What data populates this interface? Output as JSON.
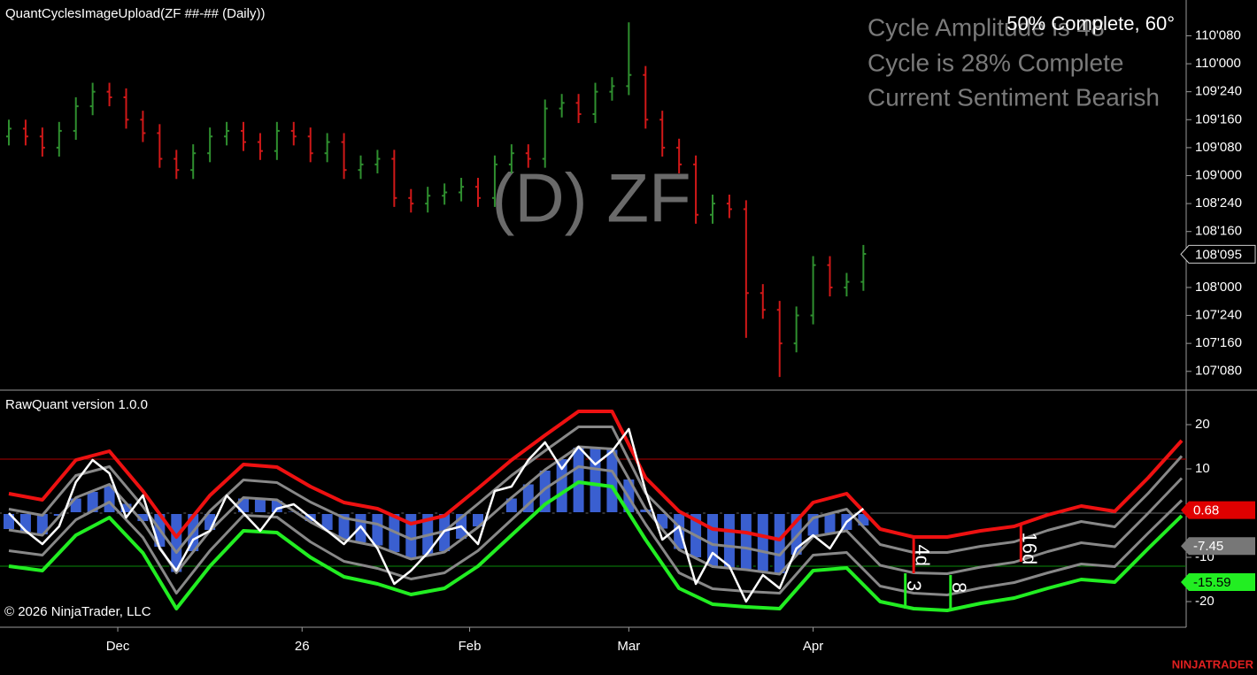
{
  "header": {
    "title": "QuantCyclesImageUpload(ZF ##-## (Daily))",
    "watermark": "(D) ZF",
    "info": [
      "Cycle Amplitude is 48",
      "Cycle is 28% Complete",
      "Current Sentiment Bearish"
    ],
    "status": "50% Complete, 60°"
  },
  "footer": {
    "copyright": "© 2026 NinjaTrader, LLC",
    "brand": "NINJATRADER"
  },
  "chart_data": [
    {
      "type": "ohlc",
      "x": [
        0,
        2,
        4,
        6,
        8,
        10,
        12,
        14,
        16,
        18,
        20,
        22,
        24,
        26,
        28,
        30,
        32,
        34,
        36,
        38,
        40,
        42,
        44,
        46,
        48,
        50,
        52,
        54,
        56,
        58,
        60,
        62,
        64,
        66,
        68,
        70,
        72,
        74,
        76,
        78,
        80,
        82,
        84,
        86,
        88,
        90,
        92,
        94,
        96,
        98,
        100,
        102
      ],
      "open": [
        109.35,
        109.42,
        109.35,
        109.25,
        109.4,
        109.62,
        109.75,
        109.7,
        109.5,
        109.38,
        109.15,
        109.05,
        109.2,
        109.35,
        109.4,
        109.3,
        109.22,
        109.4,
        109.35,
        109.2,
        109.3,
        109.05,
        109.1,
        109.15,
        108.8,
        108.75,
        108.82,
        108.85,
        108.9,
        108.8,
        109.1,
        109.2,
        109.15,
        109.6,
        109.65,
        109.55,
        109.75,
        109.8,
        109.9,
        109.5,
        109.25,
        109.1,
        108.65,
        108.75,
        108.7,
        107.95,
        107.8,
        107.5,
        107.75,
        108.2,
        108.0,
        108.05
      ],
      "high": [
        109.5,
        109.5,
        109.43,
        109.48,
        109.7,
        109.83,
        109.83,
        109.78,
        109.58,
        109.46,
        109.23,
        109.28,
        109.43,
        109.48,
        109.48,
        109.38,
        109.48,
        109.48,
        109.43,
        109.38,
        109.38,
        109.18,
        109.23,
        109.23,
        108.88,
        108.9,
        108.93,
        108.98,
        108.98,
        109.18,
        109.28,
        109.28,
        109.68,
        109.73,
        109.73,
        109.83,
        109.88,
        110.37,
        109.98,
        109.58,
        109.33,
        109.18,
        108.83,
        108.83,
        108.78,
        108.03,
        107.88,
        107.83,
        108.28,
        108.28,
        108.13,
        108.38
      ],
      "low": [
        109.27,
        109.27,
        109.17,
        109.17,
        109.32,
        109.54,
        109.62,
        109.42,
        109.3,
        109.07,
        108.97,
        108.97,
        109.12,
        109.27,
        109.22,
        109.14,
        109.14,
        109.27,
        109.12,
        109.12,
        108.97,
        108.97,
        109.02,
        108.72,
        108.67,
        108.67,
        108.74,
        108.77,
        108.72,
        108.72,
        109.02,
        109.07,
        109.07,
        109.52,
        109.47,
        109.47,
        109.67,
        109.72,
        109.42,
        109.17,
        109.02,
        108.57,
        108.57,
        108.62,
        107.55,
        107.72,
        107.2,
        107.42,
        107.67,
        107.92,
        107.92,
        107.97
      ],
      "close": [
        109.42,
        109.35,
        109.25,
        109.4,
        109.62,
        109.75,
        109.7,
        109.5,
        109.38,
        109.15,
        109.05,
        109.2,
        109.35,
        109.4,
        109.3,
        109.22,
        109.4,
        109.35,
        109.2,
        109.3,
        109.05,
        109.1,
        109.15,
        108.8,
        108.75,
        108.82,
        108.85,
        108.9,
        108.8,
        109.1,
        109.2,
        109.15,
        109.6,
        109.65,
        109.55,
        109.75,
        109.8,
        109.9,
        109.5,
        109.25,
        109.1,
        108.65,
        108.75,
        108.7,
        107.95,
        107.8,
        107.5,
        107.75,
        108.2,
        108.0,
        108.05,
        108.3
      ],
      "up_color": "#2f8f2f",
      "down_color": "#d01818",
      "xlim": [
        0,
        140
      ],
      "ylim": [
        107.09,
        110.57
      ],
      "yticks": [
        {
          "value": 110.25,
          "label": "110'080"
        },
        {
          "value": 110,
          "label": "110'000"
        },
        {
          "value": 109.75,
          "label": "109'240"
        },
        {
          "value": 109.5,
          "label": "109'160"
        },
        {
          "value": 109.25,
          "label": "109'080"
        },
        {
          "value": 109,
          "label": "109'000"
        },
        {
          "value": 108.75,
          "label": "108'240"
        },
        {
          "value": 108.5,
          "label": "108'160"
        },
        {
          "value": 108,
          "label": "108'000"
        },
        {
          "value": 107.75,
          "label": "107'240"
        },
        {
          "value": 107.5,
          "label": "107'160"
        },
        {
          "value": 107.25,
          "label": "107'080"
        }
      ],
      "current_price": {
        "value": 108.297,
        "label": "108'095"
      }
    },
    {
      "type": "indicator",
      "title": "RawQuant version 1.0.0",
      "xlim": [
        0,
        140
      ],
      "ylim": [
        -25.6,
        27.6
      ],
      "yticks": [
        20,
        10,
        -10,
        -20
      ],
      "xticks": [
        {
          "value": 13,
          "label": "Dec"
        },
        {
          "value": 35,
          "label": "26"
        },
        {
          "value": 55,
          "label": "Feb"
        },
        {
          "value": 74,
          "label": "Mar"
        },
        {
          "value": 96,
          "label": "Apr"
        }
      ],
      "levels": [
        {
          "value": 12.2,
          "color": "#b00000"
        },
        {
          "value": 0,
          "color": "#666666"
        },
        {
          "value": -12,
          "color": "#0a8a0a"
        }
      ],
      "x": [
        0,
        4,
        8,
        12,
        16,
        20,
        24,
        28,
        32,
        36,
        40,
        44,
        48,
        52,
        56,
        60,
        64,
        68,
        72,
        76,
        80,
        84,
        88,
        92,
        96,
        100,
        104,
        108,
        112,
        116,
        120,
        124,
        128,
        132,
        136,
        140
      ],
      "series": [
        {
          "color": "#888888",
          "values": [
            0.9,
            -0.5,
            8.5,
            10.5,
            1.5,
            -8.9,
            0.5,
            7.5,
            6.9,
            2.5,
            -1.1,
            -2.5,
            -5.9,
            -4.1,
            2.1,
            8.5,
            14.1,
            19.5,
            19.5,
            4.5,
            -3.1,
            -7.1,
            -7.9,
            -9.5,
            -1.1,
            0.9,
            -7.1,
            -8.9,
            -8.9,
            -7.5,
            -6.5,
            -3.9,
            -1.9,
            -3.1,
            4.5,
            12.9
          ]
        },
        {
          "color": "#888888",
          "values": [
            -3.8,
            -5,
            3.5,
            6.5,
            -2,
            -13.5,
            -4,
            3.5,
            3,
            -2,
            -6,
            -7.5,
            -10.4,
            -8.8,
            -3.2,
            3.5,
            9.8,
            15,
            14.5,
            1,
            -8.3,
            -12.1,
            -12.8,
            -13.8,
            -5.3,
            -4,
            -11.8,
            -13.5,
            -13.7,
            -12.2,
            -11.1,
            -8.7,
            -6.7,
            -7.6,
            0,
            7.9
          ]
        },
        {
          "color": "#888888",
          "values": [
            -8.5,
            -9.5,
            -1.5,
            2.5,
            -5.5,
            -18.1,
            -8.5,
            -0.5,
            -0.9,
            -6.5,
            -10.9,
            -12.5,
            -14.9,
            -13.5,
            -8.5,
            -1.5,
            5.5,
            10.5,
            9.5,
            -2.5,
            -13.5,
            -17.1,
            -17.7,
            -18.1,
            -9.5,
            -8.9,
            -16.5,
            -18.1,
            -18.5,
            -16.9,
            -15.7,
            -13.5,
            -11.5,
            -12.1,
            -4.5,
            2.9
          ]
        },
        {
          "color": "#ee1111",
          "values": [
            4.4,
            3,
            12,
            14,
            5,
            -5.4,
            4,
            11,
            10.4,
            6,
            2.4,
            1,
            -2.4,
            -0.6,
            5.6,
            12,
            17.6,
            23,
            23,
            8,
            0.4,
            -3.6,
            -4.4,
            -6,
            2.4,
            4.4,
            -3.6,
            -5.4,
            -5.4,
            -4,
            -3,
            -0.4,
            1.6,
            0.4,
            8,
            16.4
          ]
        },
        {
          "color": "#22ee22",
          "values": [
            -12,
            -13,
            -5,
            -1,
            -9,
            -21.6,
            -12,
            -4,
            -4.4,
            -10,
            -14.4,
            -16,
            -18.4,
            -17,
            -12,
            -5,
            2,
            7,
            6,
            -6,
            -17,
            -20.6,
            -21.2,
            -21.6,
            -13,
            -12.4,
            -20,
            -21.6,
            -22,
            -20.4,
            -19.2,
            -17,
            -15,
            -15.6,
            -8,
            -0.6
          ]
        }
      ],
      "raw_x": [
        0,
        2,
        4,
        6,
        8,
        10,
        12,
        14,
        16,
        18,
        20,
        22,
        24,
        26,
        28,
        30,
        32,
        34,
        36,
        38,
        40,
        42,
        44,
        46,
        48,
        50,
        52,
        54,
        56,
        58,
        60,
        62,
        64,
        66,
        68,
        70,
        72,
        74,
        76,
        78,
        80,
        82,
        84,
        86,
        88,
        90,
        92,
        94,
        96,
        98,
        100,
        102
      ],
      "histogram": {
        "color": "#3a5fd0",
        "values": [
          -3.8,
          -4.4,
          -5,
          -0.8,
          3.5,
          5,
          6.5,
          2.3,
          -2,
          -7.8,
          -13.5,
          -8.8,
          -4,
          -0.3,
          3.5,
          3.3,
          3,
          0.5,
          -2,
          -4,
          -6,
          -6.8,
          -7.5,
          -9,
          -10.4,
          -9.6,
          -8.8,
          -6,
          -3.2,
          0.2,
          3.5,
          6.7,
          9.8,
          12.4,
          15,
          14.8,
          14.5,
          7.8,
          1,
          -3.7,
          -8.3,
          -10.2,
          -12.1,
          -12.5,
          -12.8,
          -13.3,
          -13.8,
          -9.6,
          -5.3,
          -4.7,
          -4,
          -3
        ]
      },
      "raw": {
        "color": "#ffffff",
        "values": [
          0,
          -4,
          -7,
          -3,
          7,
          12,
          9,
          -1,
          4,
          -8,
          -13,
          -6,
          -4,
          4,
          0,
          -4,
          1,
          2,
          -1,
          -4,
          -7,
          -3,
          -8,
          -16,
          -13,
          -9,
          -4,
          -3,
          -7,
          5,
          6,
          12,
          16,
          10,
          15,
          11,
          14,
          19,
          5,
          -6,
          -3,
          -16,
          -9,
          -12,
          -20,
          -14,
          -17,
          -8,
          -5,
          -8,
          -2,
          1
        ]
      },
      "annotations": [
        {
          "label": "4d",
          "x": 108,
          "from": -5.4,
          "to": -13.6,
          "color": "#ee1111"
        },
        {
          "label": "16d",
          "x": 120.8,
          "from": -2.4,
          "to": -11,
          "color": "#ee1111"
        },
        {
          "label": "3",
          "x": 107,
          "from": -13.6,
          "to": -21.6,
          "color": "#22ee22"
        },
        {
          "label": "8",
          "x": 112.4,
          "from": -14,
          "to": -22,
          "color": "#22ee22"
        }
      ],
      "tags": [
        {
          "value": 0.68,
          "color": "#e00000",
          "text_color": "#ffffff"
        },
        {
          "value": -7.45,
          "color": "#777777",
          "text_color": "#ffffff"
        },
        {
          "value": -15.59,
          "color": "#22ee22",
          "text_color": "#000000"
        }
      ]
    }
  ]
}
